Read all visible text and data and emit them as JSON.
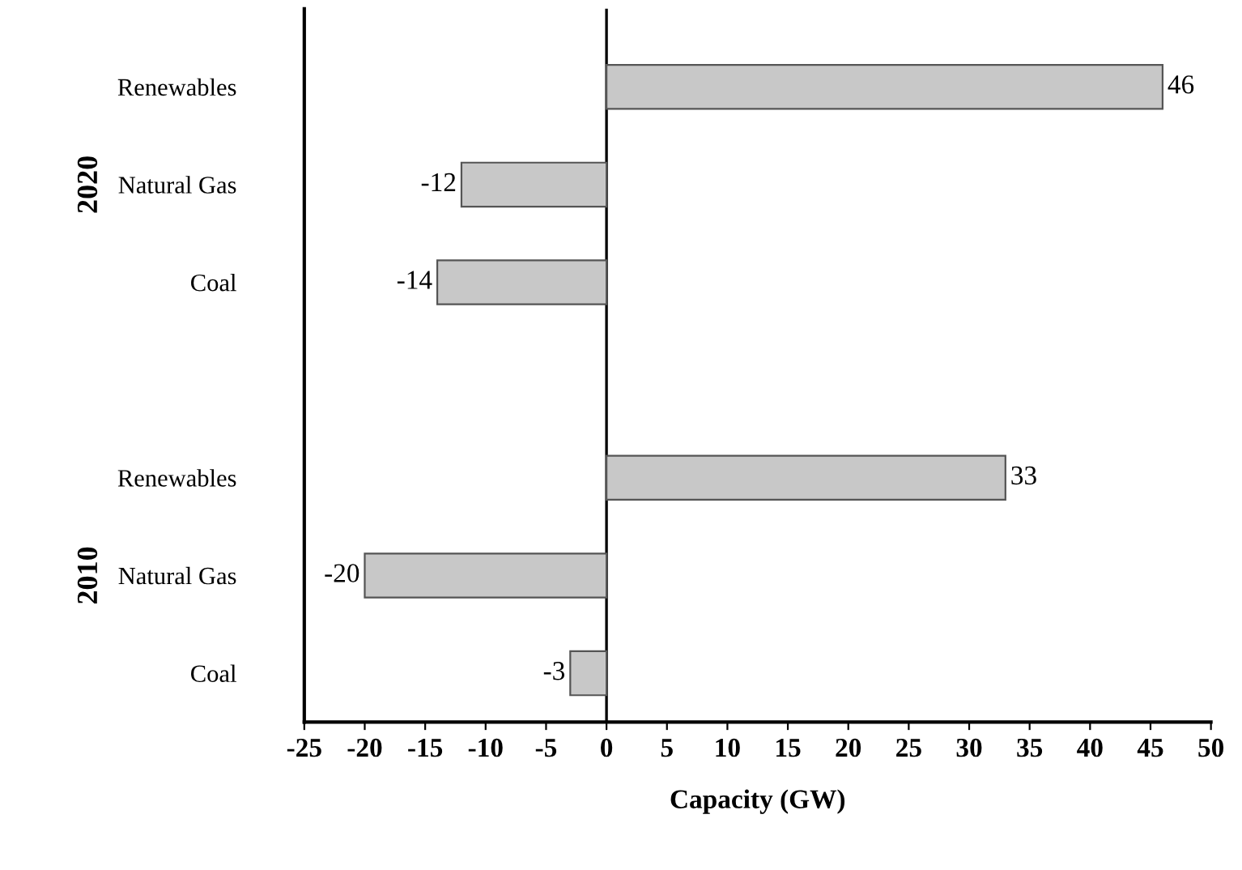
{
  "chart_data": {
    "type": "bar",
    "orientation": "horizontal",
    "xlabel": "Capacity (GW)",
    "categories": [
      "Renewables",
      "Natural Gas",
      "Coal",
      null,
      "Renewables",
      "Natural Gas",
      "Coal"
    ],
    "values": [
      46,
      -12,
      -14,
      null,
      33,
      -20,
      -3
    ],
    "color": "#c8c8c8",
    "xlim": [
      -25,
      50
    ],
    "xticks": [
      -25,
      -20,
      -15,
      -10,
      -5,
      0,
      5,
      10,
      15,
      20,
      25,
      30,
      35,
      40,
      45,
      50
    ],
    "ref_lines": [
      {
        "axis": "x",
        "value": 0,
        "color": "#000000"
      }
    ],
    "data_labels": true,
    "grid": false,
    "legend": false,
    "annotations": [
      "2020",
      "2010"
    ]
  }
}
